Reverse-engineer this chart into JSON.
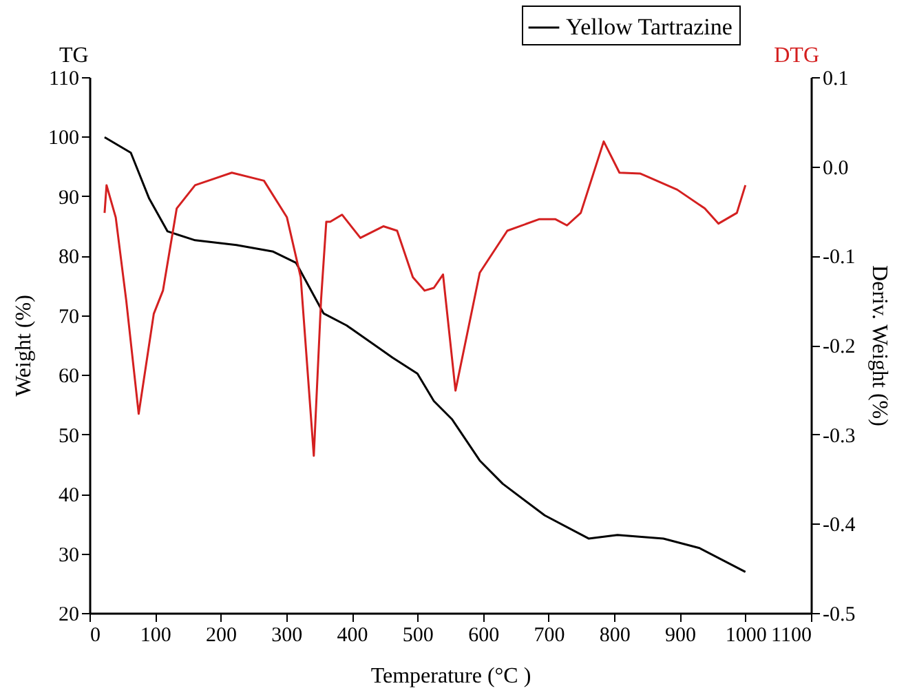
{
  "chart_data": {
    "type": "line",
    "xlabel": "Temperature (°C )",
    "ylabel": "Weight (%)",
    "y2label": "Deriv. Weight (%)",
    "annotations": [
      "TG",
      "DTG"
    ],
    "xlim": [
      0,
      1100
    ],
    "xticks": [
      0,
      100,
      200,
      300,
      400,
      500,
      600,
      700,
      800,
      900,
      1000,
      1100
    ],
    "ylim": [
      20,
      110
    ],
    "yticks": [
      20,
      30,
      40,
      50,
      60,
      70,
      80,
      90,
      100,
      110
    ],
    "y2lim": [
      -0.5,
      0.1
    ],
    "y2ticks": [
      -0.5,
      -0.4,
      -0.3,
      -0.2,
      -0.1,
      {
        "value": 0,
        "label": "0.0"
      },
      0.1
    ],
    "legend": "top right",
    "grid": false,
    "series": [
      {
        "name": "Yellow Tartrazine",
        "color": "#000000",
        "x": [
          23,
          63,
          91,
          119,
          161,
          224,
          280,
          315,
          357,
          392,
          462,
          500,
          525,
          553,
          595,
          630,
          694,
          761,
          805,
          875,
          930,
          1000
        ],
        "values": [
          99.9,
          97.3,
          89.6,
          84.1,
          82.6,
          81.8,
          80.7,
          78.8,
          70.3,
          68.3,
          62.9,
          60.2,
          55.6,
          52.5,
          45.6,
          41.7,
          36.4,
          32.5,
          33.1,
          32.5,
          30.9,
          26.9
        ]
      },
      {
        "color": "#d42020",
        "axis": "y2",
        "x": [
          23,
          26,
          40,
          56,
          75,
          98,
          112,
          133,
          161,
          217,
          266,
          301,
          322,
          342,
          353,
          361,
          367,
          385,
          413,
          448,
          469,
          493,
          511,
          525,
          539,
          558,
          595,
          637,
          686,
          710,
          728,
          749,
          784,
          808,
          840,
          896,
          938,
          959,
          987,
          1000
        ],
        "values": [
          -0.052,
          -0.021,
          -0.057,
          -0.15,
          -0.277,
          -0.165,
          -0.139,
          -0.047,
          -0.021,
          -0.007,
          -0.016,
          -0.057,
          -0.124,
          -0.324,
          -0.15,
          -0.062,
          -0.062,
          -0.054,
          -0.08,
          -0.067,
          -0.072,
          -0.124,
          -0.139,
          -0.136,
          -0.121,
          -0.251,
          -0.119,
          -0.072,
          -0.059,
          -0.059,
          -0.066,
          -0.052,
          0.028,
          -0.007,
          -0.008,
          -0.026,
          -0.047,
          -0.064,
          -0.052,
          -0.021
        ]
      }
    ]
  }
}
